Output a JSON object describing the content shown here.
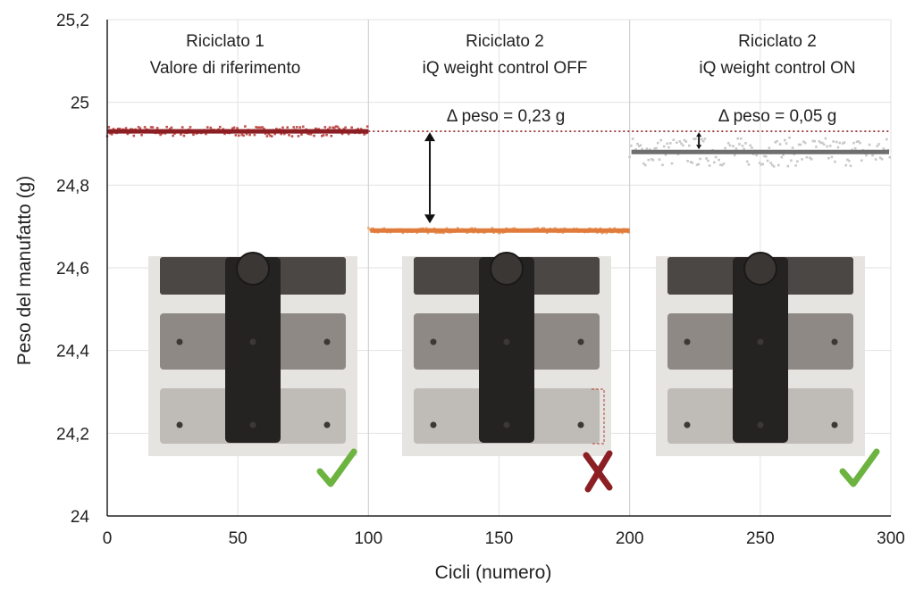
{
  "chart_data": {
    "type": "scatter",
    "title": "",
    "xlabel": "Cicli (numero)",
    "ylabel": "Peso del manufatto (g)",
    "xlim": [
      0,
      300
    ],
    "ylim": [
      24,
      25.2
    ],
    "xticks": [
      0,
      50,
      100,
      150,
      200,
      250,
      300
    ],
    "xtick_labels": [
      "0",
      "50",
      "100",
      "150",
      "200",
      "250",
      "300"
    ],
    "yticks": [
      24,
      24.2,
      24.4,
      24.6,
      24.8,
      25,
      25.2
    ],
    "ytick_labels": [
      "24",
      "24,2",
      "24,4",
      "24,6",
      "24,8",
      "25",
      "25,2"
    ],
    "grid": true,
    "reference_value": 24.93,
    "sections": [
      {
        "x_range": [
          0,
          100
        ],
        "title_line1": "Riciclato 1",
        "title_line2": "Valore di riferimento",
        "mean": 24.93,
        "spread": 0.012,
        "color": "#8B1F24",
        "dot_color": "#C0504D",
        "result": "ok"
      },
      {
        "x_range": [
          100,
          200
        ],
        "title_line1": "Riciclato 2",
        "title_line2": "iQ weight control OFF",
        "mean": 24.69,
        "spread": 0.006,
        "color": "#E07B3C",
        "dot_color": "#E9A877",
        "result": "fail",
        "delta_label": "Δ peso = 0,23 g"
      },
      {
        "x_range": [
          200,
          300
        ],
        "title_line1": "Riciclato 2",
        "title_line2": "iQ weight control ON",
        "mean": 24.88,
        "spread": 0.035,
        "color": "#6E6E6E",
        "dot_color": "#C8C8C8",
        "result": "ok",
        "delta_label": "Δ peso = 0,05 g"
      }
    ],
    "status_colors": {
      "ok": "#6DB33F",
      "fail": "#8B1F24"
    }
  }
}
